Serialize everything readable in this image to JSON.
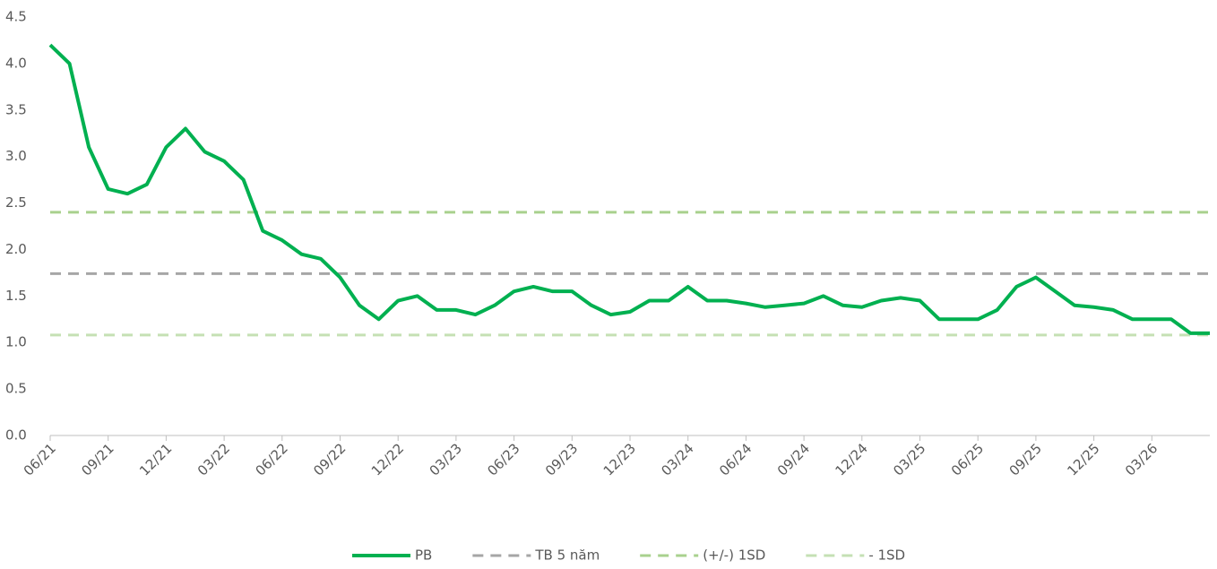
{
  "chart_data": {
    "type": "line",
    "x": [
      "06/21",
      "07/21",
      "08/21",
      "09/21",
      "10/21",
      "11/21",
      "12/21",
      "01/22",
      "02/22",
      "03/22",
      "04/22",
      "05/22",
      "06/22",
      "07/22",
      "08/22",
      "09/22",
      "10/22",
      "11/22",
      "12/22",
      "01/23",
      "02/23",
      "03/23",
      "04/23",
      "05/23",
      "06/23",
      "07/23",
      "08/23",
      "09/23",
      "10/23",
      "11/23",
      "12/23",
      "01/24",
      "02/24",
      "03/24",
      "04/24",
      "05/24",
      "06/24",
      "07/24",
      "08/24",
      "09/24",
      "10/24",
      "11/24",
      "12/24",
      "01/25",
      "02/25",
      "03/25",
      "04/25",
      "05/25",
      "06/25",
      "07/25",
      "08/25",
      "09/25",
      "10/25",
      "11/25",
      "12/25",
      "01/26",
      "02/26",
      "03/26",
      "04/26",
      "05/26",
      "06/26"
    ],
    "xticks": [
      "06/21",
      "09/21",
      "12/21",
      "03/22",
      "06/22",
      "09/22",
      "12/22",
      "03/23",
      "06/23",
      "09/23",
      "12/23",
      "03/24",
      "06/24",
      "09/24",
      "12/24",
      "03/25",
      "06/25",
      "09/25",
      "12/25",
      "03/26"
    ],
    "series": [
      {
        "name": "PB",
        "color": "#00b050",
        "values": [
          4.2,
          4.0,
          3.1,
          2.65,
          2.6,
          2.7,
          3.1,
          3.3,
          3.05,
          2.95,
          2.75,
          2.2,
          2.1,
          1.95,
          1.9,
          1.7,
          1.4,
          1.25,
          1.45,
          1.5,
          1.35,
          1.35,
          1.3,
          1.4,
          1.55,
          1.6,
          1.55,
          1.55,
          1.4,
          1.3,
          1.33,
          1.45,
          1.45,
          1.6,
          1.45,
          1.45,
          1.42,
          1.38,
          1.4,
          1.42,
          1.5,
          1.4,
          1.38,
          1.45,
          1.48,
          1.45,
          1.25,
          1.25,
          1.25,
          1.35,
          1.6,
          1.7,
          1.55,
          1.4,
          1.38,
          1.35,
          1.25,
          1.25,
          1.25,
          1.1,
          1.1
        ]
      },
      {
        "name": "TB 5 năm",
        "color": "#a6a6a6",
        "value": 1.74,
        "dashed": true
      },
      {
        "name": "(+/-) 1SD",
        "color": "#a9d18e",
        "value": 2.4,
        "dashed": true
      },
      {
        "name": "- 1SD",
        "color": "#c5e0b4",
        "value": 1.08,
        "dashed": true
      }
    ],
    "ylim": [
      0,
      4.5
    ],
    "yticks": [
      {
        "value": 0,
        "label": "0.0"
      },
      0.5,
      {
        "value": 1,
        "label": "1.0"
      },
      1.5,
      {
        "value": 2,
        "label": "2.0"
      },
      2.5,
      {
        "value": 3,
        "label": "3.0"
      },
      3.5,
      {
        "value": 4,
        "label": "4.0"
      },
      4.5
    ],
    "legend": "bottom"
  }
}
